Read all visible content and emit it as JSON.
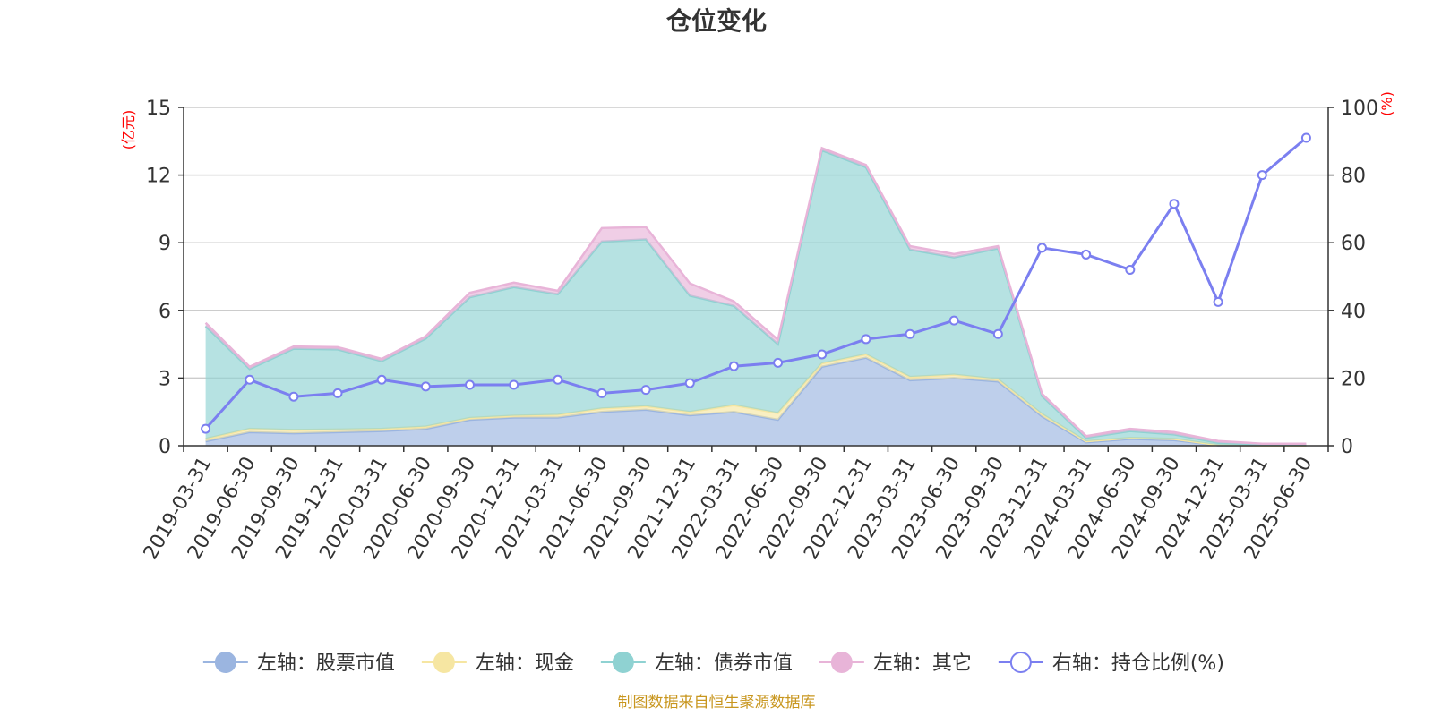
{
  "chart_data": {
    "type": "area",
    "title": "仓位变化",
    "left_unit": "(亿元)",
    "right_unit": "(%)",
    "left_ylim": [
      0,
      15
    ],
    "left_ticks": [
      0,
      3,
      6,
      9,
      12,
      15
    ],
    "right_ylim": [
      0,
      100
    ],
    "right_ticks": [
      0,
      20,
      40,
      60,
      80,
      100
    ],
    "grid": true,
    "legend_position": "bottom",
    "categories": [
      "2019-03-31",
      "2019-06-30",
      "2019-09-30",
      "2019-12-31",
      "2020-03-31",
      "2020-06-30",
      "2020-09-30",
      "2020-12-31",
      "2021-03-31",
      "2021-06-30",
      "2021-09-30",
      "2021-12-31",
      "2022-03-31",
      "2022-06-30",
      "2022-09-30",
      "2022-12-31",
      "2023-03-31",
      "2023-06-30",
      "2023-09-30",
      "2023-12-31",
      "2024-03-31",
      "2024-06-30",
      "2024-09-30",
      "2024-12-31",
      "2025-03-31",
      "2025-06-30"
    ],
    "series": [
      {
        "name": "左轴：股票市值",
        "axis": "left",
        "type": "area",
        "color": "#9bb5e0",
        "values": [
          0.2,
          0.6,
          0.55,
          0.6,
          0.65,
          0.75,
          1.15,
          1.25,
          1.25,
          1.5,
          1.6,
          1.35,
          1.5,
          1.15,
          3.5,
          3.9,
          2.9,
          3.0,
          2.85,
          1.3,
          0.15,
          0.3,
          0.25,
          0.02,
          0.01,
          0.01
        ]
      },
      {
        "name": "左轴：现金",
        "axis": "left",
        "type": "area",
        "color": "#f6e6a2",
        "values": [
          0.1,
          0.15,
          0.15,
          0.12,
          0.1,
          0.1,
          0.08,
          0.08,
          0.12,
          0.15,
          0.15,
          0.15,
          0.3,
          0.3,
          0.15,
          0.15,
          0.15,
          0.15,
          0.1,
          0.1,
          0.05,
          0.05,
          0.05,
          0.01,
          0.0,
          0.0
        ]
      },
      {
        "name": "左轴：债券市值",
        "axis": "left",
        "type": "area",
        "color": "#8fd2d2",
        "values": [
          5.0,
          2.65,
          3.6,
          3.55,
          3.0,
          3.9,
          5.35,
          5.7,
          5.35,
          7.4,
          7.4,
          5.15,
          4.4,
          3.05,
          9.45,
          8.3,
          5.65,
          5.2,
          5.8,
          0.8,
          0.15,
          0.3,
          0.2,
          0.1,
          0.04,
          0.04
        ]
      },
      {
        "name": "左轴：其它",
        "axis": "left",
        "type": "area",
        "color": "#e8b4d8",
        "values": [
          0.15,
          0.1,
          0.1,
          0.1,
          0.1,
          0.1,
          0.2,
          0.2,
          0.15,
          0.6,
          0.55,
          0.55,
          0.2,
          0.2,
          0.1,
          0.1,
          0.15,
          0.15,
          0.1,
          0.1,
          0.08,
          0.1,
          0.1,
          0.08,
          0.04,
          0.04
        ]
      },
      {
        "name": "右轴：持仓比例(%)",
        "axis": "right",
        "type": "line",
        "color": "#7b7ff0",
        "values": [
          5.0,
          19.5,
          14.5,
          15.5,
          19.5,
          17.5,
          18.0,
          18.0,
          19.5,
          15.5,
          16.5,
          18.5,
          23.5,
          24.5,
          27.0,
          31.5,
          33.0,
          37.0,
          33.0,
          58.5,
          56.5,
          52.0,
          71.5,
          42.5,
          80.0,
          91.0
        ]
      }
    ],
    "source": "制图数据来自恒生聚源数据库"
  }
}
